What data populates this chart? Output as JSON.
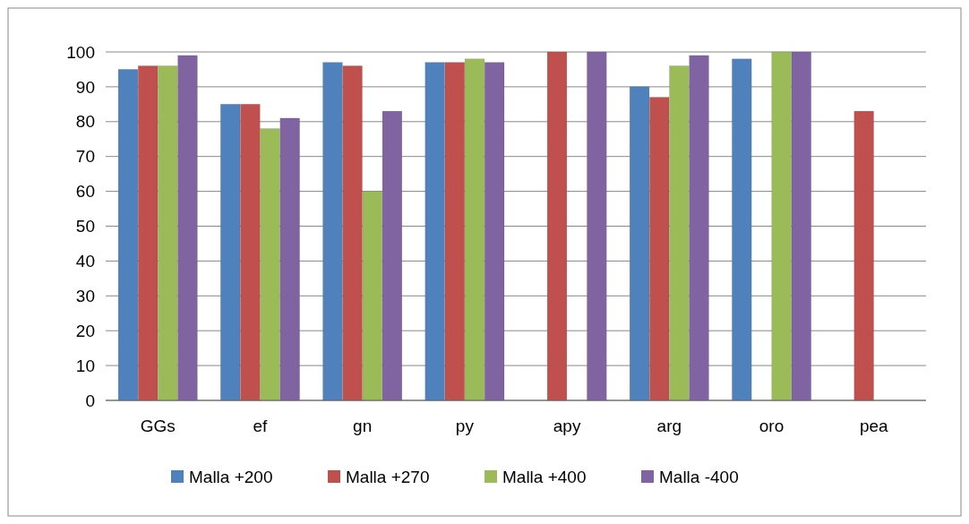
{
  "chart_data": {
    "type": "bar",
    "categories": [
      "GGs",
      "ef",
      "gn",
      "py",
      "apy",
      "arg",
      "oro",
      "pea"
    ],
    "series": [
      {
        "name": "Malla +200",
        "color": "#4f81bd",
        "values": [
          95,
          85,
          97,
          97,
          0,
          90,
          98,
          0
        ]
      },
      {
        "name": "Malla +270",
        "color": "#c0504d",
        "values": [
          96,
          85,
          96,
          97,
          100,
          87,
          0,
          83
        ]
      },
      {
        "name": "Malla +400",
        "color": "#9bbb59",
        "values": [
          96,
          78,
          60,
          98,
          0,
          96,
          100,
          0
        ]
      },
      {
        "name": "Malla -400",
        "color": "#8064a2",
        "values": [
          99,
          81,
          83,
          97,
          100,
          99,
          100,
          0
        ]
      }
    ],
    "ylim": [
      0,
      100
    ],
    "yticks": [
      0,
      10,
      20,
      30,
      40,
      50,
      60,
      70,
      80,
      90,
      100
    ],
    "grid": "y",
    "legend": "bottom"
  }
}
